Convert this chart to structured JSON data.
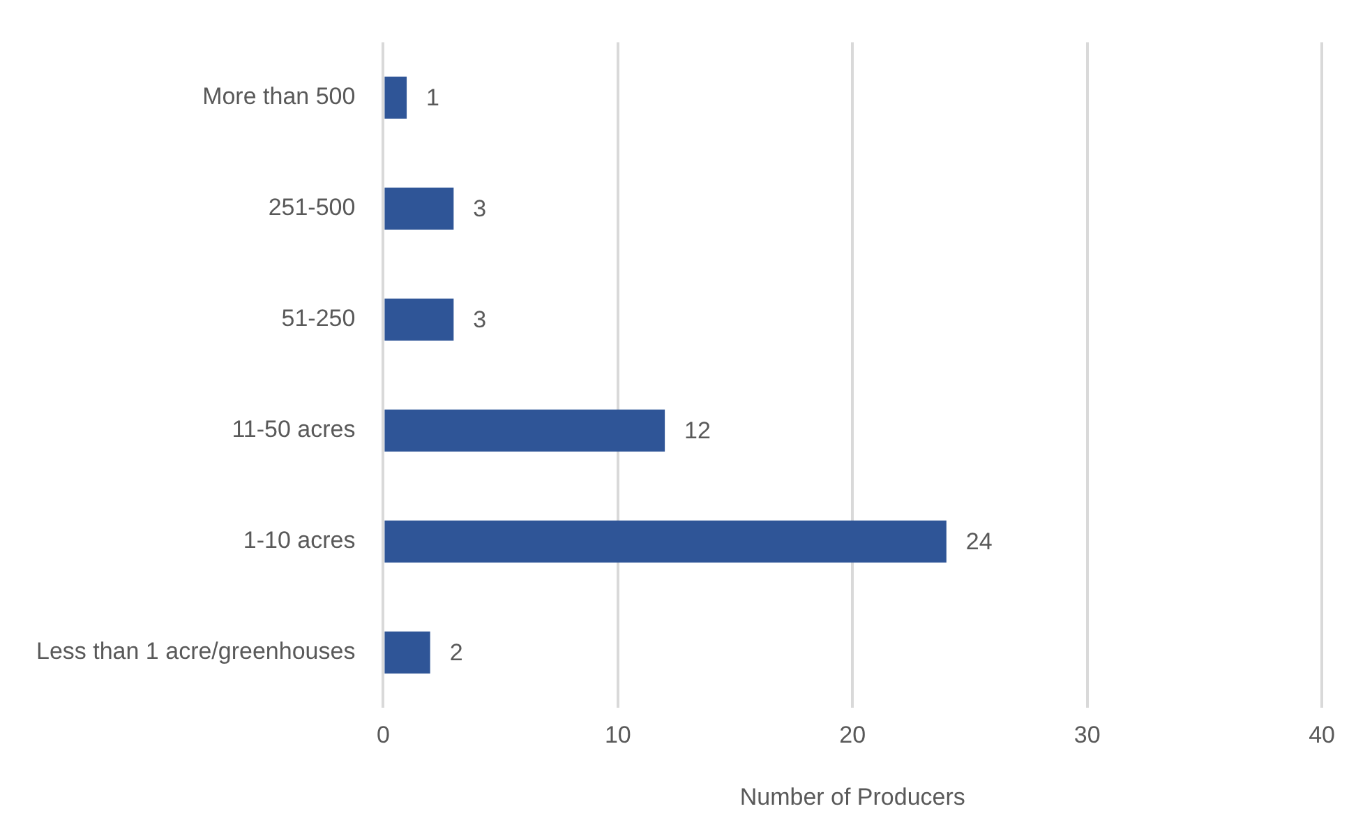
{
  "chart_data": {
    "type": "bar",
    "orientation": "horizontal",
    "categories": [
      "More than 500",
      "251-500",
      "51-250",
      "11-50 acres",
      "1-10 acres",
      "Less than 1 acre/greenhouses"
    ],
    "values": [
      1,
      3,
      3,
      12,
      24,
      2
    ],
    "color": "#2f5597",
    "xlim": [
      0,
      40
    ],
    "xticks": [
      0,
      10,
      20,
      30,
      40
    ],
    "xlabel": "Number of Producers",
    "grid": "x",
    "legend": false,
    "data_labels": true
  }
}
